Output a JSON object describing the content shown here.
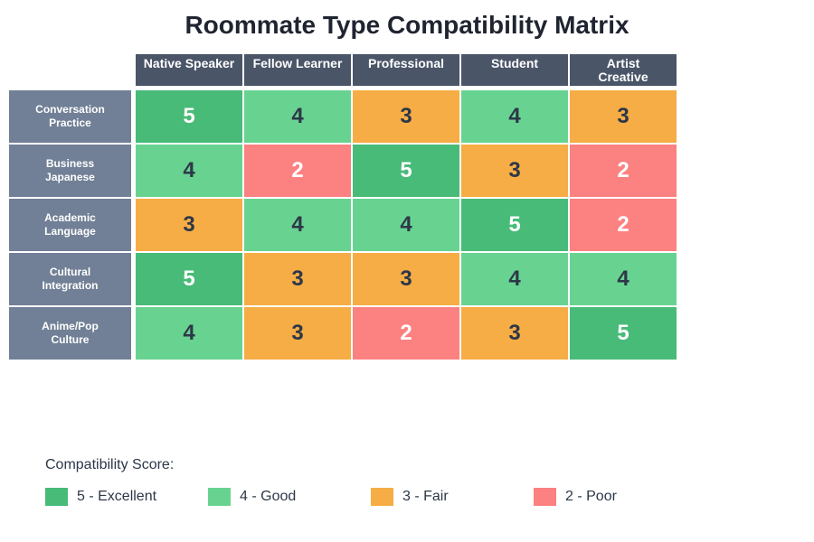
{
  "title": "Roommate Type Compatibility Matrix",
  "columns": [
    {
      "label": "Native Speaker"
    },
    {
      "label": "Fellow Learner"
    },
    {
      "label": "Professional"
    },
    {
      "label": "Student"
    },
    {
      "label": "Artist\nCreative"
    }
  ],
  "rows": [
    {
      "label": "Conversation\nPractice",
      "values": [
        5,
        4,
        3,
        4,
        3
      ]
    },
    {
      "label": "Business\nJapanese",
      "values": [
        4,
        2,
        5,
        3,
        2
      ]
    },
    {
      "label": "Academic\nLanguage",
      "values": [
        3,
        4,
        4,
        5,
        2
      ]
    },
    {
      "label": "Cultural\nIntegration",
      "values": [
        5,
        3,
        3,
        4,
        4
      ]
    },
    {
      "label": "Anime/Pop\nCulture",
      "values": [
        4,
        3,
        2,
        3,
        5
      ]
    }
  ],
  "colors": {
    "5": {
      "bg": "#48bb78",
      "fg": "#ffffff"
    },
    "4": {
      "bg": "#68d391",
      "fg": "#2d3748"
    },
    "3": {
      "bg": "#f6ad45",
      "fg": "#2d3748"
    },
    "2": {
      "bg": "#fc8181",
      "fg": "#ffffff"
    }
  },
  "legend": {
    "title": "Compatibility Score:",
    "items": [
      {
        "label": "5 - Excellent",
        "color": "#48bb78"
      },
      {
        "label": "4 - Good",
        "color": "#68d391"
      },
      {
        "label": "3 - Fair",
        "color": "#f6ad45"
      },
      {
        "label": "2 - Poor",
        "color": "#fc8181"
      }
    ]
  },
  "chart_data": {
    "type": "heatmap",
    "title": "Roommate Type Compatibility Matrix",
    "x": [
      "Native Speaker",
      "Fellow Learner",
      "Professional",
      "Student",
      "Artist Creative"
    ],
    "y": [
      "Conversation Practice",
      "Business Japanese",
      "Academic Language",
      "Cultural Integration",
      "Anime/Pop Culture"
    ],
    "values": [
      [
        5,
        4,
        3,
        4,
        3
      ],
      [
        4,
        2,
        5,
        3,
        2
      ],
      [
        3,
        4,
        4,
        5,
        2
      ],
      [
        5,
        3,
        3,
        4,
        4
      ],
      [
        4,
        3,
        2,
        3,
        5
      ]
    ],
    "legend": [
      "5 - Excellent",
      "4 - Good",
      "3 - Fair",
      "2 - Poor"
    ],
    "legend_position": "bottom"
  }
}
